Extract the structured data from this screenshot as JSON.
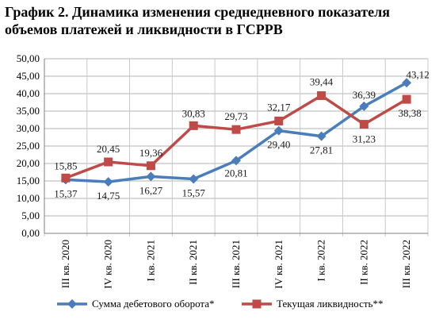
{
  "title": "График 2. Динамика изменения среднедневного показателя объемов платежей и ликвидности в ГСРРВ",
  "chart_data": {
    "type": "line",
    "title": "График 2. Динамика изменения среднедневного показателя объемов платежей и ликвидности в ГСРРВ",
    "categories": [
      "III кв. 2020",
      "IV кв. 2020",
      "I кв. 2021",
      "II кв. 2021",
      "III кв. 2021",
      "IV кв. 2021",
      "I кв. 2022",
      "II кв. 2022",
      "III кв. 2022"
    ],
    "ylim": [
      0,
      50
    ],
    "yticks": [
      "0,00",
      "5,00",
      "10,00",
      "15,00",
      "20,00",
      "25,00",
      "30,00",
      "35,00",
      "40,00",
      "45,00",
      "50,00"
    ],
    "grid": true,
    "legend_position": "bottom",
    "series": [
      {
        "name": "Сумма дебетового оборота*",
        "color": "#4a7ebb",
        "marker": "diamond",
        "values": [
          15.37,
          14.75,
          16.27,
          15.57,
          20.81,
          29.4,
          27.81,
          36.39,
          43.12
        ],
        "labels": [
          "15,37",
          "14,75",
          "16,27",
          "15,57",
          "20,81",
          "29,40",
          "27,81",
          "36,39",
          "43,12"
        ]
      },
      {
        "name": "Текущая ликвидность**",
        "color": "#be4b48",
        "marker": "square",
        "values": [
          15.85,
          20.45,
          19.36,
          30.83,
          29.73,
          32.17,
          39.44,
          31.23,
          38.38
        ],
        "labels": [
          "15,85",
          "20,45",
          "19,36",
          "30,83",
          "29,73",
          "32,17",
          "39,44",
          "31,23",
          "38,38"
        ]
      }
    ]
  }
}
